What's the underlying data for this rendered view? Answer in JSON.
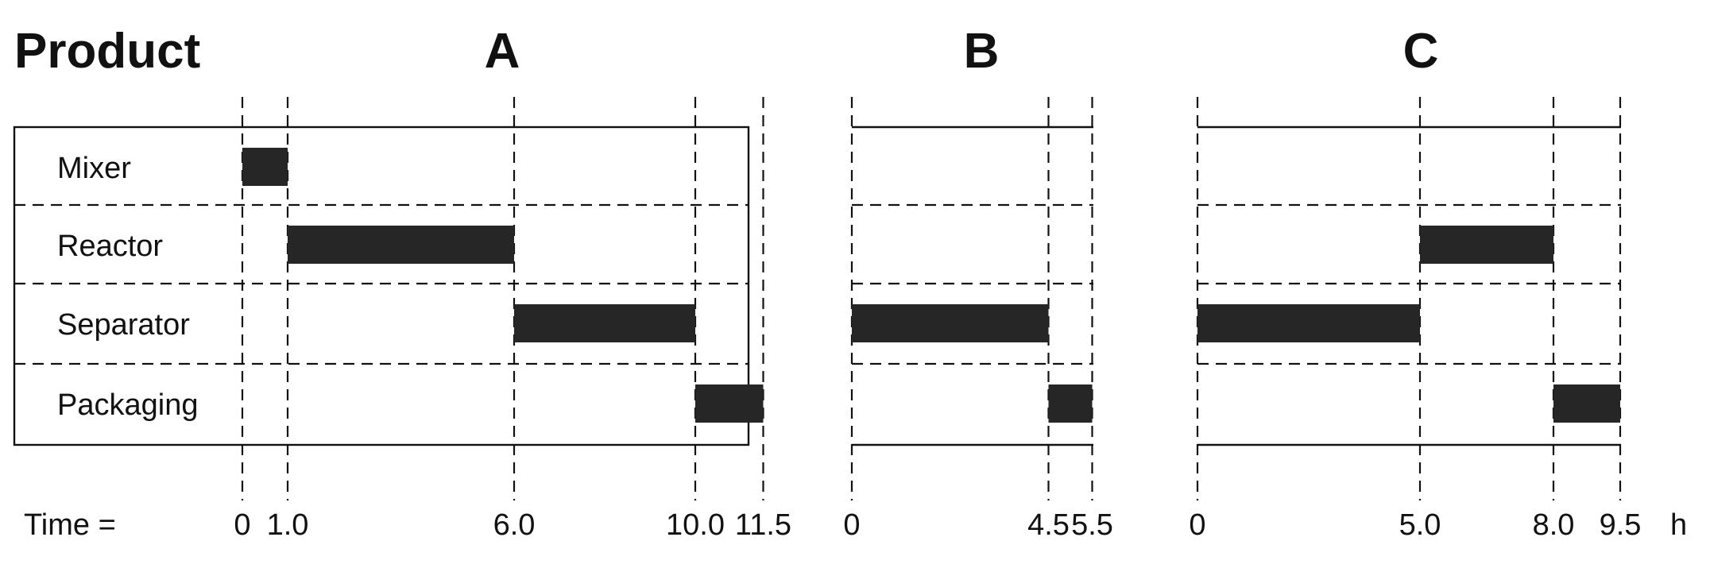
{
  "header": {
    "title": "Product"
  },
  "footer": {
    "time_label": "Time =",
    "unit": "h"
  },
  "units": [
    "Mixer",
    "Reactor",
    "Separator",
    "Packaging"
  ],
  "chart_data": {
    "type": "gantt",
    "row_labels": [
      "Mixer",
      "Reactor",
      "Separator",
      "Packaging"
    ],
    "products": [
      {
        "name": "A",
        "ticks": [
          "0",
          "1.0",
          "6.0",
          "10.0",
          "11.5"
        ],
        "tasks": [
          {
            "unit": "Mixer",
            "start": 0,
            "end": 1.0
          },
          {
            "unit": "Reactor",
            "start": 1.0,
            "end": 6.0
          },
          {
            "unit": "Separator",
            "start": 6.0,
            "end": 10.0
          },
          {
            "unit": "Packaging",
            "start": 10.0,
            "end": 11.5
          }
        ]
      },
      {
        "name": "B",
        "ticks": [
          "0",
          "4.5",
          "5.5"
        ],
        "tasks": [
          {
            "unit": "Separator",
            "start": 0,
            "end": 4.5
          },
          {
            "unit": "Packaging",
            "start": 4.5,
            "end": 5.5
          }
        ]
      },
      {
        "name": "C",
        "ticks": [
          "0",
          "5.0",
          "8.0",
          "9.5"
        ],
        "tasks": [
          {
            "unit": "Separator",
            "start": 0,
            "end": 5.0
          },
          {
            "unit": "Reactor",
            "start": 5.0,
            "end": 8.0
          },
          {
            "unit": "Packaging",
            "start": 8.0,
            "end": 9.5
          }
        ]
      }
    ]
  }
}
